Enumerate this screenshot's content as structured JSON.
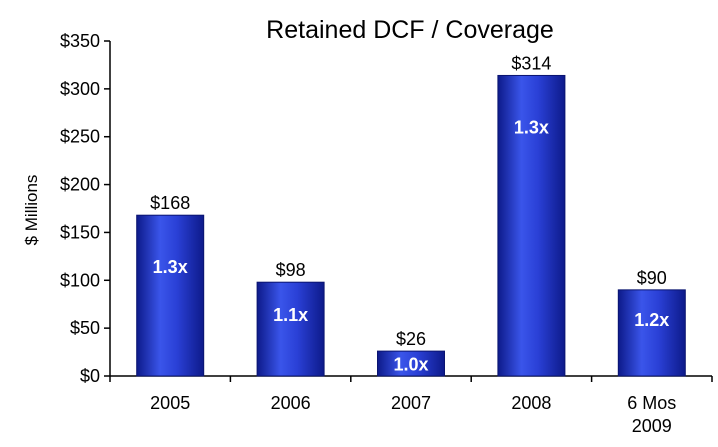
{
  "chart_data": {
    "type": "bar",
    "title": "Retained DCF / Coverage",
    "ylabel": "$ Millions",
    "xlabel": "",
    "ylim": [
      0,
      350
    ],
    "yticks": [
      0,
      50,
      100,
      150,
      200,
      250,
      300,
      350
    ],
    "ytick_labels": [
      "$0",
      "$50",
      "$100",
      "$150",
      "$200",
      "$250",
      "$300",
      "$350"
    ],
    "categories": [
      [
        "2005"
      ],
      [
        "2006"
      ],
      [
        "2007"
      ],
      [
        "2008"
      ],
      [
        "6 Mos",
        "2009"
      ]
    ],
    "values": [
      168,
      98,
      26,
      314,
      90
    ],
    "value_labels": [
      "$168",
      "$98",
      "$26",
      "$314",
      "$90"
    ],
    "coverage_labels": [
      "1.3x",
      "1.1x",
      "1.0x",
      "1.3x",
      "1.2x"
    ],
    "bar_color": "#1e2fc4",
    "bar_color_light": "#3a55ea",
    "grid": false,
    "legend": "none"
  }
}
